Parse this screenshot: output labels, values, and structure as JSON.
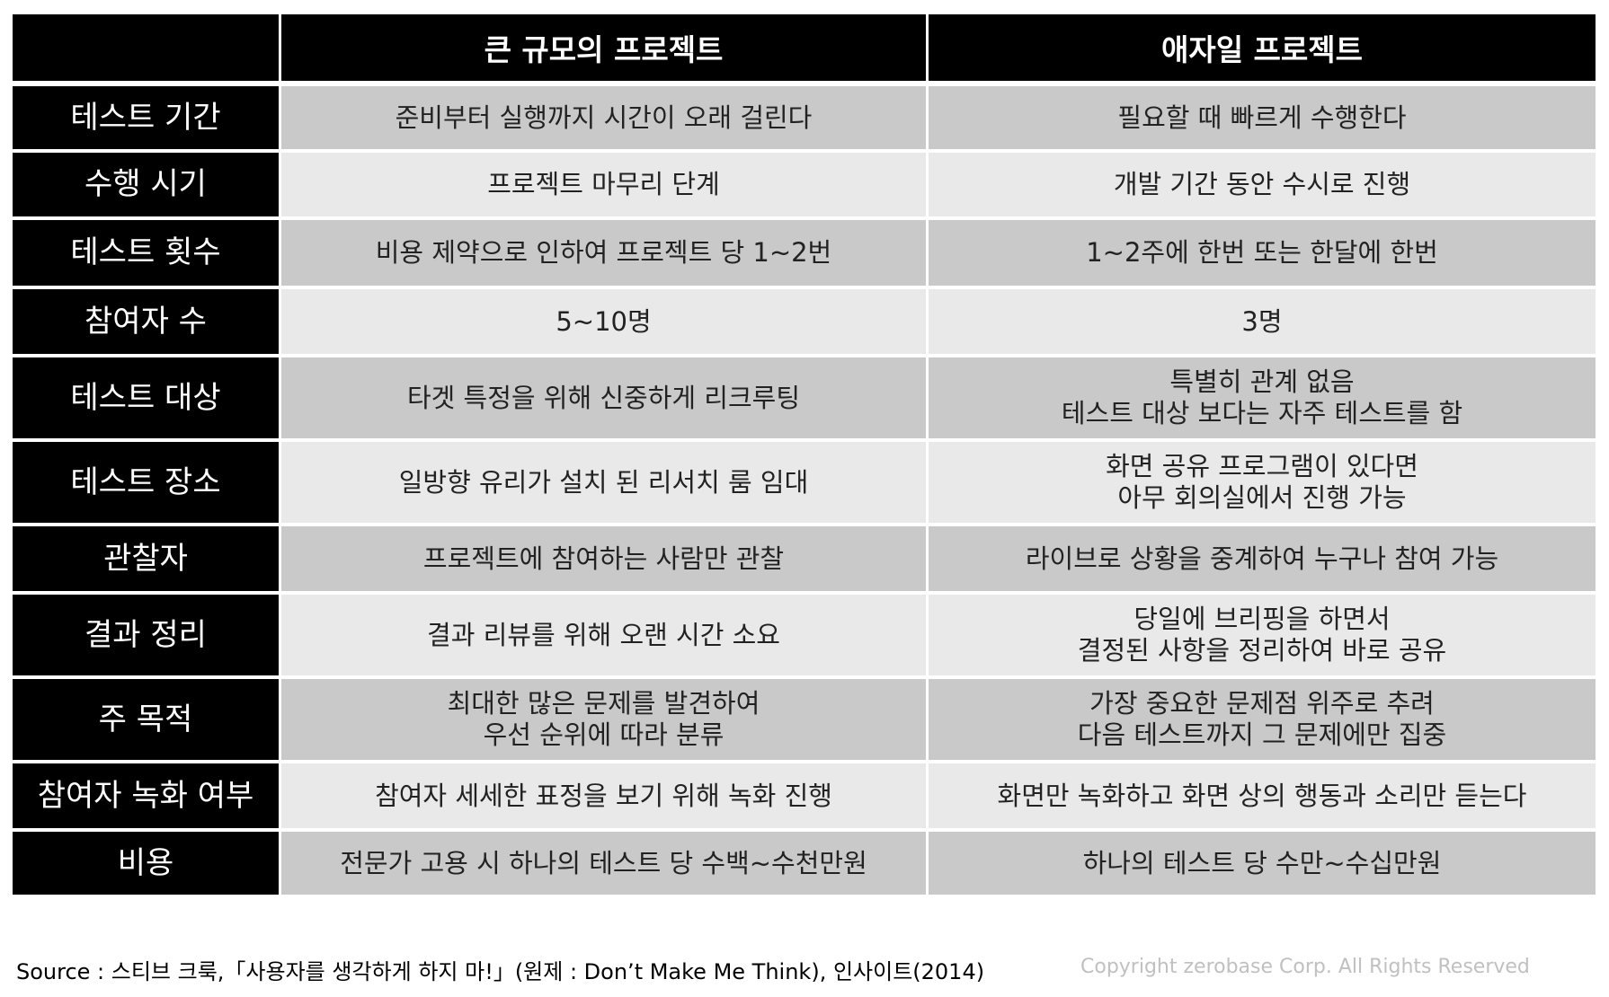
{
  "header": {
    "corner": "",
    "col1": "큰 규모의 프로젝트",
    "col2": "애자일 프로젝트"
  },
  "rows": [
    {
      "label": "테스트 기간",
      "large": [
        "준비부터 실행까지 시간이 오래 걸린다"
      ],
      "agile": [
        "필요할 때 빠르게 수행한다"
      ]
    },
    {
      "label": "수행 시기",
      "large": [
        "프로젝트 마무리 단계"
      ],
      "agile": [
        "개발 기간 동안 수시로 진행"
      ]
    },
    {
      "label": "테스트 횟수",
      "large": [
        "비용 제약으로 인하여 프로젝트 당 1~2번"
      ],
      "agile": [
        "1~2주에 한번 또는 한달에 한번"
      ]
    },
    {
      "label": "참여자 수",
      "large": [
        "5~10명"
      ],
      "agile": [
        "3명"
      ]
    },
    {
      "label": "테스트 대상",
      "large": [
        "타겟 특정을 위해 신중하게 리크루팅"
      ],
      "agile": [
        "특별히 관계 없음",
        "테스트 대상 보다는 자주 테스트를 함"
      ]
    },
    {
      "label": "테스트 장소",
      "large": [
        "일방향 유리가 설치 된 리서치 룸 임대"
      ],
      "agile": [
        "화면 공유 프로그램이 있다면",
        "아무 회의실에서 진행 가능"
      ]
    },
    {
      "label": "관찰자",
      "large": [
        "프로젝트에 참여하는 사람만 관찰"
      ],
      "agile": [
        "라이브로 상황을 중계하여 누구나 참여 가능"
      ]
    },
    {
      "label": "결과 정리",
      "large": [
        "결과 리뷰를 위해 오랜 시간 소요"
      ],
      "agile": [
        "당일에 브리핑을 하면서",
        "결정된 사항을 정리하여 바로 공유"
      ]
    },
    {
      "label": "주 목적",
      "large": [
        "최대한 많은 문제를 발견하여",
        "우선 순위에 따라 분류"
      ],
      "agile": [
        "가장 중요한 문제점 위주로 추려",
        "다음 테스트까지 그 문제에만 집중"
      ]
    },
    {
      "label": "참여자 녹화 여부",
      "large": [
        "참여자 세세한 표정을 보기 위해 녹화 진행"
      ],
      "agile": [
        "화면만 녹화하고 화면 상의 행동과 소리만 듣는다"
      ]
    },
    {
      "label": "비용",
      "large": [
        "전문가 고용 시 하나의 테스트 당 수백~수천만원"
      ],
      "agile": [
        "하나의 테스트 당 수만~수십만원"
      ]
    }
  ],
  "footer": {
    "source": "Source : 스티브 크룩,「사용자를 생각하게 하지 마!」(원제 : Don’t Make Me Think), 인사이트(2014)",
    "copyright": "Copyright zerobase Corp. All Rights Reserved"
  },
  "colors": {
    "header_bg": "#000000",
    "row_dark": "#c9c9c9",
    "row_light": "#e9e9e9"
  }
}
